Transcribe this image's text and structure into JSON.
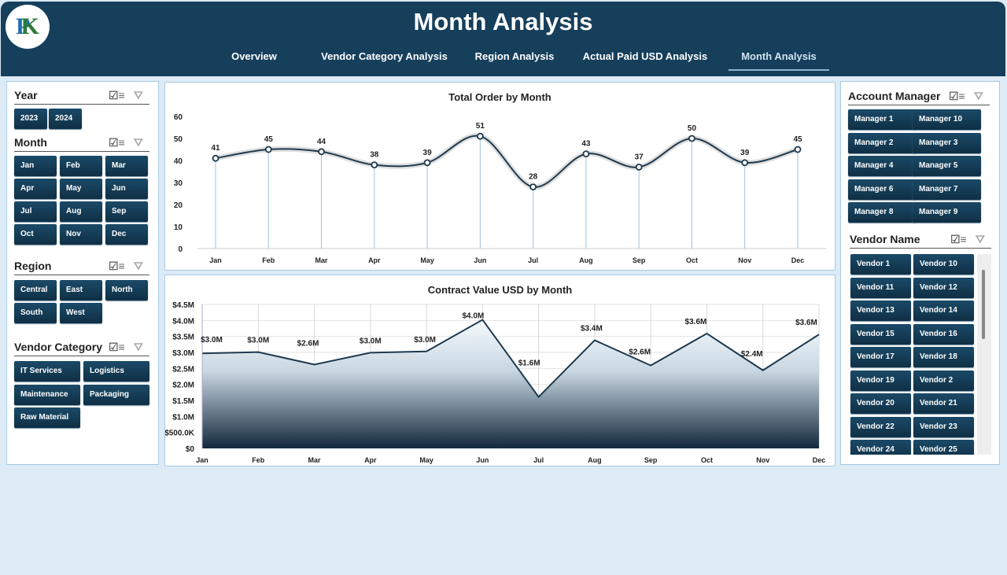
{
  "header": {
    "title": "Month Analysis",
    "logo_text": "PK",
    "tabs": [
      {
        "label": "Overview",
        "active": false
      },
      {
        "label": "Vendor Category Analysis",
        "active": false
      },
      {
        "label": "Region Analysis",
        "active": false
      },
      {
        "label": "Actual Paid USD Analysis",
        "active": false
      },
      {
        "label": "Month Analysis",
        "active": true
      }
    ]
  },
  "slicers": {
    "year": {
      "title": "Year",
      "items": [
        "2023",
        "2024"
      ]
    },
    "month": {
      "title": "Month",
      "items": [
        "Jan",
        "Feb",
        "Mar",
        "Apr",
        "May",
        "Jun",
        "Jul",
        "Aug",
        "Sep",
        "Oct",
        "Nov",
        "Dec"
      ]
    },
    "region": {
      "title": "Region",
      "items": [
        "Central",
        "East",
        "North",
        "South",
        "West"
      ]
    },
    "vendor_category": {
      "title": "Vendor Category",
      "items": [
        "IT Services",
        "Logistics",
        "Maintenance",
        "Packaging",
        "Raw Material"
      ]
    },
    "account_manager": {
      "title": "Account Manager",
      "items": [
        "Manager 1",
        "Manager 10",
        "Manager 2",
        "Manager 3",
        "Manager 4",
        "Manager 5",
        "Manager 6",
        "Manager 7",
        "Manager 8",
        "Manager 9"
      ]
    },
    "vendor_name": {
      "title": "Vendor Name",
      "items": [
        "Vendor 1",
        "Vendor 10",
        "Vendor 11",
        "Vendor 12",
        "Vendor 13",
        "Vendor 14",
        "Vendor 15",
        "Vendor 16",
        "Vendor 17",
        "Vendor 18",
        "Vendor 19",
        "Vendor 2",
        "Vendor 20",
        "Vendor 21",
        "Vendor 22",
        "Vendor 23",
        "Vendor 24",
        "Vendor 25"
      ]
    }
  },
  "icons": {
    "multiselect": "multi-select-icon",
    "clear_filter": "clear-filter-icon"
  },
  "chart_data": [
    {
      "type": "line",
      "title": "Total Order by Month",
      "categories": [
        "Jan",
        "Feb",
        "Mar",
        "Apr",
        "May",
        "Jun",
        "Jul",
        "Aug",
        "Sep",
        "Oct",
        "Nov",
        "Dec"
      ],
      "values": [
        41,
        45,
        44,
        38,
        39,
        51,
        28,
        43,
        37,
        50,
        39,
        45
      ],
      "ylim": [
        0,
        60
      ],
      "yticks": [
        "0",
        "10",
        "20",
        "30",
        "40",
        "50",
        "60"
      ],
      "smooth": true,
      "color": "#1d3a4f"
    },
    {
      "type": "area",
      "title": "Contract Value USD by Month",
      "categories": [
        "Jan",
        "Feb",
        "Mar",
        "Apr",
        "May",
        "Jun",
        "Jul",
        "Aug",
        "Sep",
        "Oct",
        "Nov",
        "Dec"
      ],
      "values": [
        2.97,
        3.01,
        2.62,
        2.99,
        3.03,
        4.02,
        1.61,
        3.38,
        2.59,
        3.59,
        2.44,
        3.56
      ],
      "labels": [
        "$3.0M",
        "$3.0M",
        "$2.6M",
        "$3.0M",
        "$3.0M",
        "$4.0M",
        "$1.6M",
        "$3.4M",
        "$2.6M",
        "$3.6M",
        "$2.4M",
        "$3.6M"
      ],
      "unit": "USD millions",
      "ylim": [
        0,
        4.5
      ],
      "yticks": [
        "$0",
        "$500.0K",
        "$1.0M",
        "$1.5M",
        "$2.0M",
        "$2.5M",
        "$3.0M",
        "$3.5M",
        "$4.0M",
        "$4.5M"
      ],
      "color": "#1d3a4f"
    }
  ]
}
